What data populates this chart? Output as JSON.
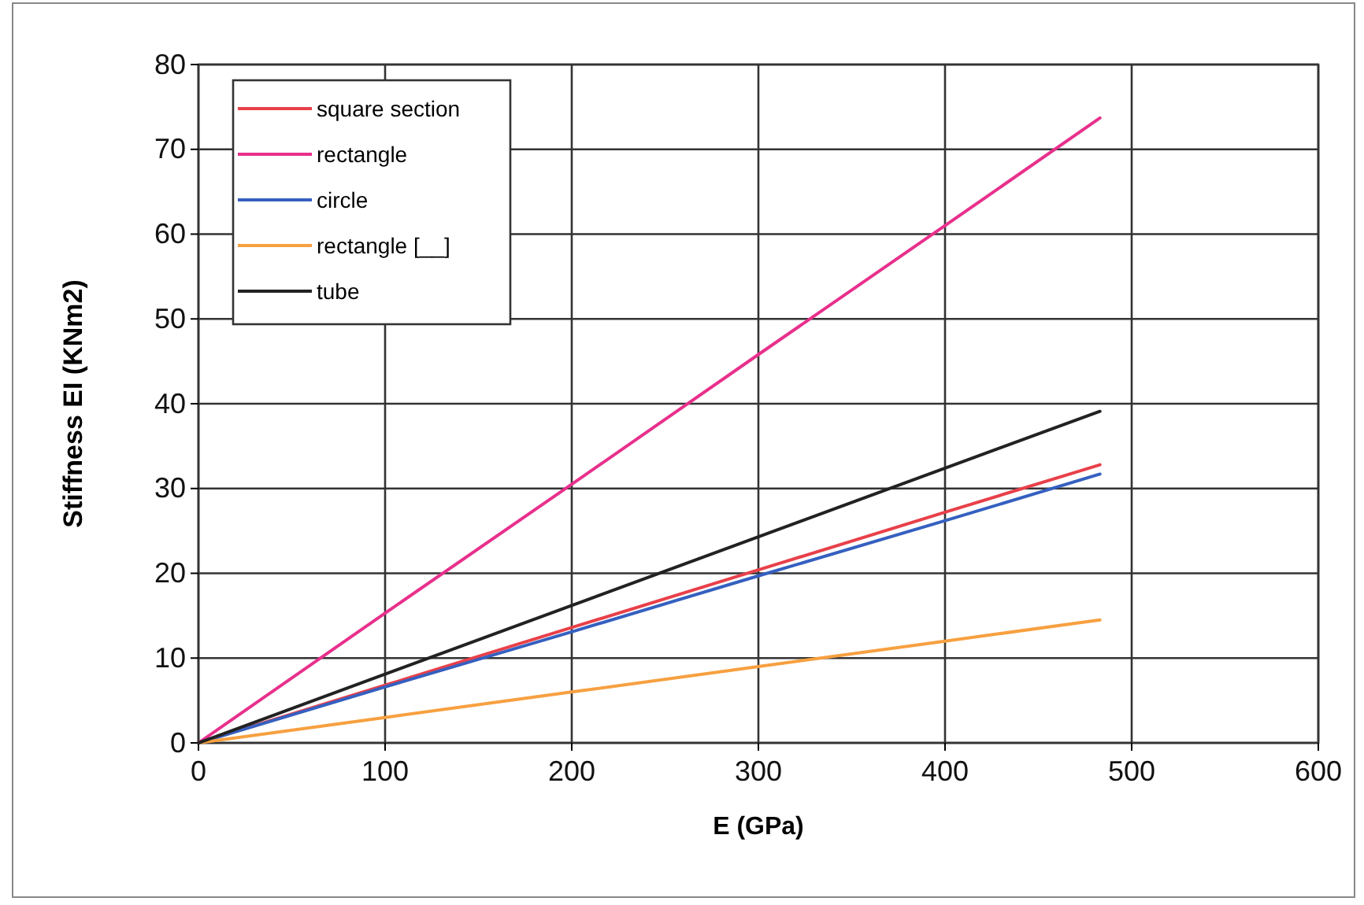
{
  "chart_data": {
    "type": "line",
    "xlabel": "E (GPa)",
    "ylabel": "Stiffness EI (KNm2)",
    "xlim": [
      0,
      600
    ],
    "xticks": [
      0,
      100,
      200,
      300,
      400,
      500,
      600
    ],
    "ylim": [
      0,
      80
    ],
    "yticks": [
      0,
      10,
      20,
      30,
      40,
      50,
      60,
      70,
      80
    ],
    "grid": true,
    "legend": "top left",
    "x": [
      0,
      100,
      200,
      300,
      400,
      483
    ],
    "series": [
      {
        "name": "square section",
        "color": "#e8404a",
        "values": [
          0,
          6.8,
          13.6,
          20.4,
          27.2,
          32.8
        ]
      },
      {
        "name": "rectangle",
        "color": "#e8308c",
        "values": [
          0,
          15.3,
          30.5,
          45.8,
          61.0,
          73.7
        ]
      },
      {
        "name": "circle",
        "color": "#3560c0",
        "values": [
          0,
          6.6,
          13.1,
          19.7,
          26.2,
          31.7
        ]
      },
      {
        "name": "rectangle [__]",
        "color": "#f7a040",
        "values": [
          0,
          3.0,
          6.0,
          9.0,
          12.0,
          14.5
        ]
      },
      {
        "name": "tube",
        "color": "#222222",
        "values": [
          0,
          8.1,
          16.2,
          24.3,
          32.4,
          39.1
        ]
      }
    ]
  }
}
